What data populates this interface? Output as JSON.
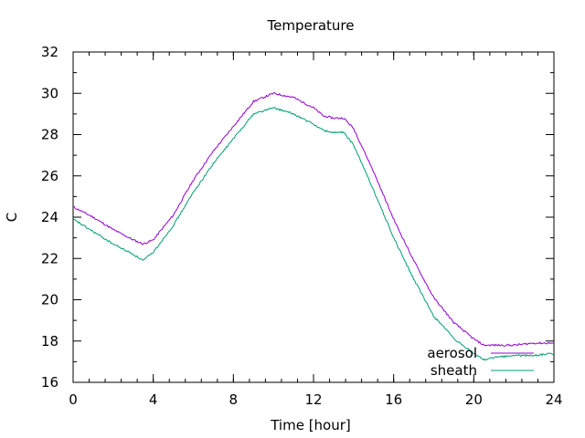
{
  "chart_data": {
    "type": "line",
    "title": "Temperature",
    "xlabel": "Time [hour]",
    "ylabel": "C",
    "xlim": [
      0,
      24
    ],
    "ylim": [
      16,
      32
    ],
    "xticks": [
      0,
      4,
      8,
      12,
      16,
      20,
      24
    ],
    "yticks": [
      16,
      18,
      20,
      22,
      24,
      26,
      28,
      30,
      32
    ],
    "xtick_labels": [
      "0",
      "4",
      "8",
      "12",
      "16",
      "20",
      "24"
    ],
    "ytick_labels": [
      "16",
      "18",
      "20",
      "22",
      "24",
      "26",
      "28",
      "30",
      "32"
    ],
    "grid": false,
    "legend_position": "bottom-right",
    "series": [
      {
        "name": "aerosol",
        "color": "#9400d3",
        "x": [
          0,
          1,
          2,
          3,
          3.5,
          4,
          5,
          6,
          7,
          8,
          9,
          10,
          11,
          12,
          12.5,
          13,
          13.5,
          14,
          15,
          16,
          17,
          18,
          18.5,
          19,
          20,
          20.5,
          21,
          22,
          23,
          24
        ],
        "y": [
          24.5,
          24.0,
          23.4,
          22.9,
          22.7,
          22.9,
          24.1,
          25.8,
          27.2,
          28.4,
          29.6,
          30.0,
          29.8,
          29.3,
          28.9,
          28.8,
          28.8,
          28.3,
          26.2,
          23.9,
          21.9,
          20.1,
          19.5,
          18.9,
          18.1,
          17.8,
          17.8,
          17.8,
          17.9,
          17.9
        ]
      },
      {
        "name": "sheath",
        "color": "#009e73",
        "x": [
          0,
          1,
          2,
          3,
          3.5,
          4,
          5,
          6,
          7,
          8,
          9,
          10,
          11,
          12,
          12.5,
          13,
          13.5,
          14,
          15,
          16,
          17,
          18,
          18.5,
          19,
          20,
          20.5,
          21,
          22,
          23,
          24
        ],
        "y": [
          23.9,
          23.3,
          22.7,
          22.2,
          21.9,
          22.3,
          23.6,
          25.2,
          26.6,
          27.8,
          29.0,
          29.3,
          29.0,
          28.5,
          28.2,
          28.1,
          28.1,
          27.5,
          25.3,
          23.0,
          21.0,
          19.2,
          18.7,
          18.1,
          17.4,
          17.1,
          17.2,
          17.3,
          17.3,
          17.4
        ]
      }
    ]
  }
}
